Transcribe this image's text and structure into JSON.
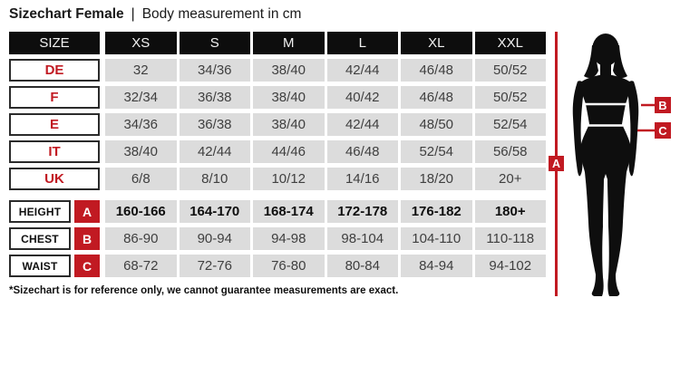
{
  "title": {
    "bold_part": "Sizechart Female",
    "separator": "|",
    "regular_part": "Body measurement in cm"
  },
  "table": {
    "header": [
      "SIZE",
      "XS",
      "S",
      "M",
      "L",
      "XL",
      "XXL"
    ],
    "size_rows": [
      {
        "label": "DE",
        "values": [
          "32",
          "34/36",
          "38/40",
          "42/44",
          "46/48",
          "50/52"
        ]
      },
      {
        "label": "F",
        "values": [
          "32/34",
          "36/38",
          "38/40",
          "40/42",
          "46/48",
          "50/52"
        ]
      },
      {
        "label": "E",
        "values": [
          "34/36",
          "36/38",
          "38/40",
          "42/44",
          "48/50",
          "52/54"
        ]
      },
      {
        "label": "IT",
        "values": [
          "38/40",
          "42/44",
          "44/46",
          "46/48",
          "52/54",
          "56/58"
        ]
      },
      {
        "label": "UK",
        "values": [
          "6/8",
          "8/10",
          "10/12",
          "14/16",
          "18/20",
          "20+"
        ]
      }
    ],
    "measure_rows": [
      {
        "label": "HEIGHT",
        "marker": "A",
        "bold": true,
        "values": [
          "160-166",
          "164-170",
          "168-174",
          "172-178",
          "176-182",
          "180+"
        ]
      },
      {
        "label": "CHEST",
        "marker": "B",
        "bold": false,
        "values": [
          "86-90",
          "90-94",
          "94-98",
          "98-104",
          "104-110",
          "110-118"
        ]
      },
      {
        "label": "WAIST",
        "marker": "C",
        "bold": false,
        "values": [
          "68-72",
          "72-76",
          "76-80",
          "80-84",
          "84-94",
          "94-102"
        ]
      }
    ]
  },
  "figure": {
    "markers": {
      "a": "A",
      "b": "B",
      "c": "C"
    }
  },
  "footnote": "*Sizechart is for reference only, we cannot guarantee measurements are exact.",
  "colors": {
    "accent_red": "#c11a22",
    "cell_gray": "#dcdcdc",
    "header_black": "#0d0d0d"
  },
  "chart_data": {
    "type": "table",
    "title": "Sizechart Female | Body measurement in cm",
    "columns": [
      "SIZE",
      "XS",
      "S",
      "M",
      "L",
      "XL",
      "XXL"
    ],
    "rows": [
      [
        "DE",
        "32",
        "34/36",
        "38/40",
        "42/44",
        "46/48",
        "50/52"
      ],
      [
        "F",
        "32/34",
        "36/38",
        "38/40",
        "40/42",
        "46/48",
        "50/52"
      ],
      [
        "E",
        "34/36",
        "36/38",
        "38/40",
        "42/44",
        "48/50",
        "52/54"
      ],
      [
        "IT",
        "38/40",
        "42/44",
        "44/46",
        "46/48",
        "52/54",
        "56/58"
      ],
      [
        "UK",
        "6/8",
        "8/10",
        "10/12",
        "14/16",
        "18/20",
        "20+"
      ],
      [
        "HEIGHT (A)",
        "160-166",
        "164-170",
        "168-174",
        "172-178",
        "176-182",
        "180+"
      ],
      [
        "CHEST (B)",
        "86-90",
        "90-94",
        "94-98",
        "98-104",
        "104-110",
        "110-118"
      ],
      [
        "WAIST (C)",
        "68-72",
        "72-76",
        "76-80",
        "80-84",
        "84-94",
        "94-102"
      ]
    ],
    "note": "*Sizechart is for reference only, we cannot guarantee measurements are exact."
  }
}
